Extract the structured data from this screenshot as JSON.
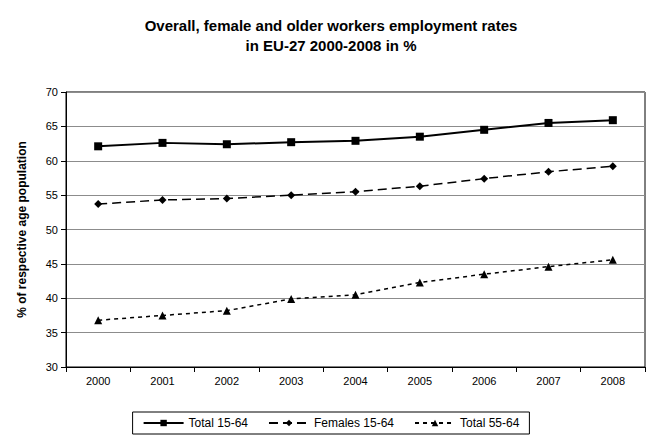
{
  "chart_data": {
    "type": "line",
    "title": "Overall, female and older workers employment rates\nin EU-27 2000-2008 in %",
    "y_label": "% of respective age population",
    "categories": [
      "2000",
      "2001",
      "2002",
      "2003",
      "2004",
      "2005",
      "2006",
      "2007",
      "2008"
    ],
    "series": [
      {
        "name": "Total 15-64",
        "color": "#000000",
        "marker": "square",
        "line_style": "solid",
        "values": [
          62.1,
          62.6,
          62.4,
          62.7,
          62.9,
          63.5,
          64.5,
          65.5,
          65.9
        ]
      },
      {
        "name": "Females 15-64",
        "color": "#000000",
        "marker": "diamond",
        "line_style": "dashed",
        "values": [
          53.7,
          54.3,
          54.5,
          55.0,
          55.5,
          56.3,
          57.4,
          58.4,
          59.2
        ]
      },
      {
        "name": "Total 55-64",
        "color": "#000000",
        "marker": "triangle",
        "line_style": "dotted",
        "values": [
          36.8,
          37.5,
          38.2,
          39.9,
          40.5,
          42.3,
          43.5,
          44.6,
          45.6
        ]
      }
    ],
    "ylim": [
      30,
      70
    ],
    "yticks": [
      30,
      35,
      40,
      45,
      50,
      55,
      60,
      65,
      70
    ],
    "grid": true,
    "legend": "bottom"
  }
}
